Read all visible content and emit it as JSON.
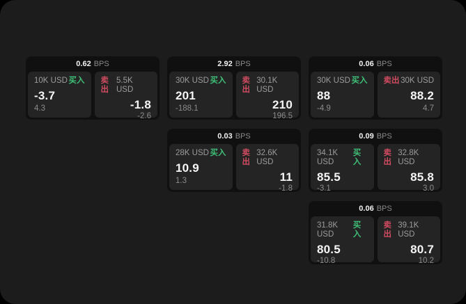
{
  "labels": {
    "bps_unit": "BPS",
    "buy": "买入",
    "sell": "卖出"
  },
  "colors": {
    "panel_bg": "#1c1c1c",
    "card_bg": "#101010",
    "tile_bg": "#242424",
    "buy_green": "#3fbf77",
    "sell_red": "#cf4b60",
    "price_text": "#f5f5f5",
    "muted_text": "#9c9c9c"
  },
  "cards": [
    {
      "bps": "0.62",
      "buy": {
        "amount": "10K USD",
        "price": "-3.7",
        "sub": "4.3"
      },
      "sell": {
        "amount": "5.5K USD",
        "price": "-1.8",
        "sub": "-2.6"
      }
    },
    {
      "bps": "2.92",
      "buy": {
        "amount": "30K USD",
        "price": "201",
        "sub": "-188.1"
      },
      "sell": {
        "amount": "30.1K USD",
        "price": "210",
        "sub": "196.5"
      }
    },
    {
      "bps": "0.06",
      "buy": {
        "amount": "30K USD",
        "price": "88",
        "sub": "-4.9"
      },
      "sell": {
        "amount": "30K USD",
        "price": "88.2",
        "sub": "4.7"
      }
    },
    {
      "bps": "0.03",
      "buy": {
        "amount": "28K USD",
        "price": "10.9",
        "sub": "1.3"
      },
      "sell": {
        "amount": "32.6K USD",
        "price": "11",
        "sub": "-1.8"
      }
    },
    {
      "bps": "0.09",
      "buy": {
        "amount": "34.1K USD",
        "price": "85.5",
        "sub": "-3.1"
      },
      "sell": {
        "amount": "32.8K USD",
        "price": "85.8",
        "sub": "3.0"
      }
    },
    {
      "bps": "0.06",
      "buy": {
        "amount": "31.8K USD",
        "price": "80.5",
        "sub": "-10.8"
      },
      "sell": {
        "amount": "39.1K USD",
        "price": "80.7",
        "sub": "10.2"
      }
    }
  ]
}
